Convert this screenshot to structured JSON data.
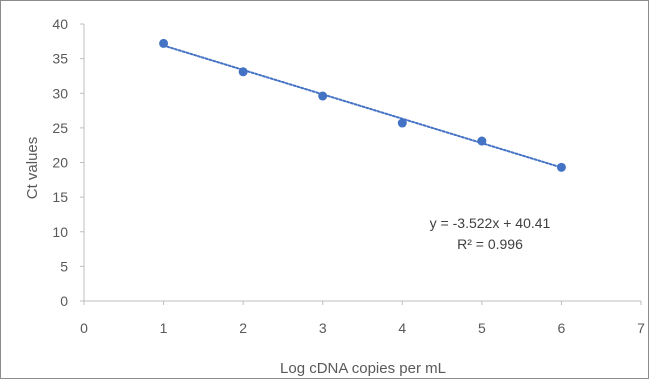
{
  "chart_data": {
    "type": "scatter",
    "xlabel": "Log cDNA copies per mL",
    "ylabel": "Ct values",
    "xlim": [
      0,
      7
    ],
    "ylim": [
      0,
      40
    ],
    "x_ticks": [
      "0",
      "1",
      "2",
      "3",
      "4",
      "5",
      "6",
      "7"
    ],
    "y_ticks": [
      "0",
      "5",
      "10",
      "15",
      "20",
      "25",
      "30",
      "35",
      "40"
    ],
    "series": [
      {
        "x": [
          1,
          2,
          3,
          4,
          5,
          6
        ],
        "y": [
          37.2,
          33.1,
          29.6,
          25.7,
          23.1,
          19.3
        ],
        "color": "#4472c4"
      }
    ],
    "trendline": {
      "type": "linear",
      "slope": -3.522,
      "intercept": 40.41,
      "x_range": [
        1,
        6
      ],
      "style": "dotted",
      "color": "#4472c4"
    },
    "annotations": {
      "equation": "y = -3.522x + 40.41",
      "r_squared": "R² = 0.996"
    },
    "grid": false,
    "legend": "none"
  }
}
